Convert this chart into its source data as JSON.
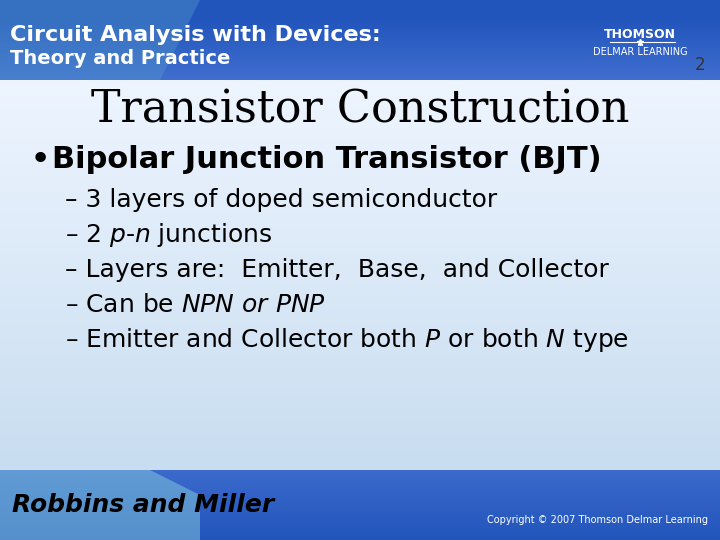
{
  "title": "Transistor Construction",
  "title_fontsize": 32,
  "title_color": "#000000",
  "bullet_main": "Bipolar Junction Transistor (BJT)",
  "bullet_main_fontsize": 22,
  "sub_bullets": [
    "3 layers of doped semiconductor",
    "2 $p$-$n$ junctions",
    "Layers are:  Emitter,  Base,  and Collector",
    "Can be $NPN$ $or$ $PNP$",
    "Emitter and Collector both $P$ or both $N$ type"
  ],
  "sub_bullet_fontsize": 18,
  "header_text_line1": "Circuit Analysis with Devices:",
  "header_text_line2": "Theory and Practice",
  "header_bg_color": "#2255bb",
  "header_text_color": "#ffffff",
  "footer_text_left": "Robbins and Miller",
  "footer_text_right": "Copyright © 2007 Thomson Delmar Learning",
  "footer_bg_color": "#2255bb",
  "body_bg_color": "#ddeeff",
  "slide_bg_color": "#c8ddf0",
  "page_number": "2",
  "thomson_text": "THOMSON",
  "delmar_text": "DELMAR LEARNING"
}
